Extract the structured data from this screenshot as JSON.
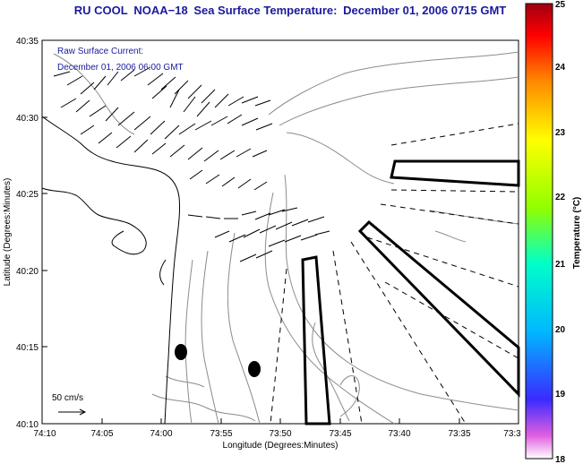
{
  "title": {
    "part1": "RU COOL",
    "part2": "NOAA−18",
    "part3": "Sea Surface Temperature:",
    "part4": "December 01, 2006 0715 GMT"
  },
  "annotation": {
    "line1": "Raw Surface Current:",
    "line2": "December 01, 2006 06:00 GMT"
  },
  "scale": {
    "label": "50 cm/s"
  },
  "axes": {
    "xlabel": "Longitude (Degrees:Minutes)",
    "ylabel": "Latitude (Degrees:Minutes)",
    "xticks": [
      "74:10",
      "74:05",
      "74:00",
      "73:55",
      "73:50",
      "73:45",
      "73:40",
      "73:35",
      "73:3"
    ],
    "yticks": [
      "40:35",
      "40:30",
      "40:25",
      "40:20",
      "40:15",
      "40:10"
    ]
  },
  "colorbar": {
    "label": "Temperature (°C)",
    "ticks": [
      "25",
      "24",
      "23",
      "22",
      "21",
      "20",
      "19",
      "18"
    ]
  },
  "colors": {
    "title": "#1a1a9c",
    "contour": "#8c8c8c",
    "coast": "#000000"
  }
}
